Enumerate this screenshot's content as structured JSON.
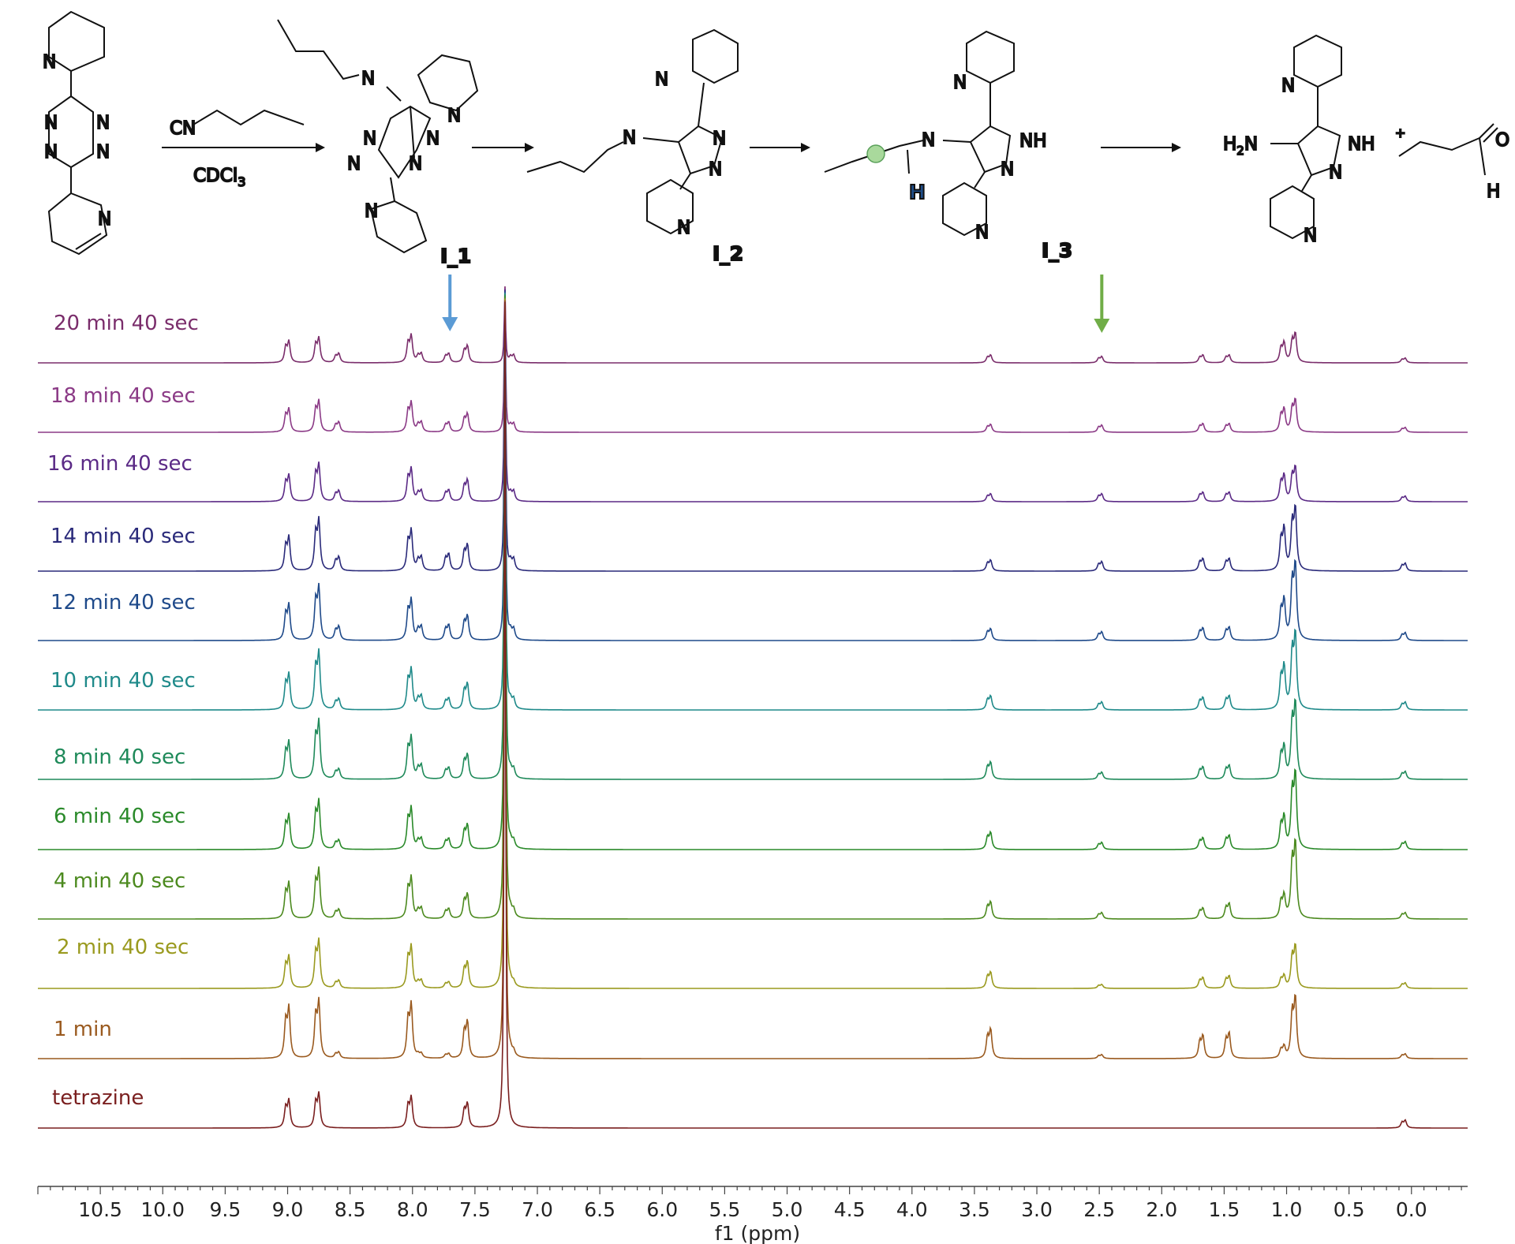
{
  "scheme": {
    "reagent": "CN",
    "solvent": "CDCl3",
    "solvent_main": "CDCl",
    "solvent_sub": "3",
    "atom_N": "N",
    "atom_NH": "NH",
    "atom_H": "H",
    "atom_O": "O",
    "amine_H": "H",
    "amine_sub": "2",
    "amine_N": "N",
    "plus": "+",
    "intermediates": [
      "I_1",
      "I_2",
      "I_3"
    ]
  },
  "chart_data": {
    "type": "line",
    "title": "",
    "xlabel": "f1 (ppm)",
    "ylabel": "",
    "xlim": [
      11.0,
      -0.45
    ],
    "x_reversed": true,
    "grid": false,
    "legend": "none",
    "x_ticks": [
      "10.5",
      "10.0",
      "9.5",
      "9.0",
      "8.5",
      "8.0",
      "7.5",
      "7.0",
      "6.5",
      "6.0",
      "5.5",
      "5.0",
      "4.5",
      "4.0",
      "3.5",
      "3.0",
      "2.5",
      "2.0",
      "1.5",
      "1.0",
      "0.5",
      "0.0"
    ],
    "x_tick_values": [
      10.5,
      10.0,
      9.5,
      9.0,
      8.5,
      8.0,
      7.5,
      7.0,
      6.5,
      6.0,
      5.5,
      5.0,
      4.5,
      4.0,
      3.5,
      3.0,
      2.5,
      2.0,
      1.5,
      1.0,
      0.5,
      0.0
    ],
    "arrows": [
      {
        "intermediate": "I_1",
        "ppm": 7.7,
        "color": "#5b9bd5"
      },
      {
        "intermediate": "I_3",
        "ppm": 2.48,
        "color": "#70ad47"
      }
    ],
    "solvent_peak_ppm": 7.26,
    "series": [
      {
        "name": "20 min 40 sec",
        "color": "#7a2d6b",
        "peaks": [
          [
            8.99,
            0.28
          ],
          [
            8.75,
            0.32
          ],
          [
            8.59,
            0.12
          ],
          [
            8.01,
            0.35
          ],
          [
            7.93,
            0.12
          ],
          [
            7.71,
            0.12
          ],
          [
            7.56,
            0.22
          ],
          [
            7.19,
            0.1
          ],
          [
            3.37,
            0.1
          ],
          [
            2.48,
            0.08
          ],
          [
            1.67,
            0.1
          ],
          [
            1.46,
            0.1
          ],
          [
            1.02,
            0.26
          ],
          [
            0.93,
            0.38
          ],
          [
            0.05,
            0.06
          ]
        ]
      },
      {
        "name": "18 min 40 sec",
        "color": "#8b3a86",
        "peaks": [
          [
            8.99,
            0.3
          ],
          [
            8.75,
            0.4
          ],
          [
            8.59,
            0.13
          ],
          [
            8.01,
            0.38
          ],
          [
            7.93,
            0.13
          ],
          [
            7.71,
            0.13
          ],
          [
            7.56,
            0.24
          ],
          [
            7.19,
            0.11
          ],
          [
            3.37,
            0.1
          ],
          [
            2.48,
            0.09
          ],
          [
            1.67,
            0.11
          ],
          [
            1.46,
            0.11
          ],
          [
            1.02,
            0.3
          ],
          [
            0.93,
            0.42
          ],
          [
            0.05,
            0.06
          ]
        ]
      },
      {
        "name": "16 min 40 sec",
        "color": "#5b2a86",
        "peaks": [
          [
            8.99,
            0.34
          ],
          [
            8.75,
            0.48
          ],
          [
            8.59,
            0.14
          ],
          [
            8.01,
            0.42
          ],
          [
            7.93,
            0.14
          ],
          [
            7.71,
            0.15
          ],
          [
            7.56,
            0.28
          ],
          [
            7.19,
            0.13
          ],
          [
            3.37,
            0.1
          ],
          [
            2.48,
            0.1
          ],
          [
            1.67,
            0.12
          ],
          [
            1.46,
            0.12
          ],
          [
            1.02,
            0.34
          ],
          [
            0.93,
            0.45
          ],
          [
            0.05,
            0.07
          ]
        ]
      },
      {
        "name": "14 min 40 sec",
        "color": "#2a2a7a",
        "peaks": [
          [
            8.99,
            0.44
          ],
          [
            8.75,
            0.66
          ],
          [
            8.59,
            0.18
          ],
          [
            8.01,
            0.52
          ],
          [
            7.93,
            0.18
          ],
          [
            7.71,
            0.22
          ],
          [
            7.56,
            0.34
          ],
          [
            7.19,
            0.15
          ],
          [
            3.37,
            0.14
          ],
          [
            2.48,
            0.12
          ],
          [
            1.67,
            0.16
          ],
          [
            1.46,
            0.16
          ],
          [
            1.02,
            0.55
          ],
          [
            0.93,
            0.82
          ],
          [
            0.05,
            0.1
          ]
        ]
      },
      {
        "name": "12 min 40 sec",
        "color": "#1f4a8a",
        "peaks": [
          [
            8.99,
            0.46
          ],
          [
            8.75,
            0.69
          ],
          [
            8.59,
            0.18
          ],
          [
            8.01,
            0.52
          ],
          [
            7.93,
            0.18
          ],
          [
            7.71,
            0.2
          ],
          [
            7.56,
            0.32
          ],
          [
            7.19,
            0.14
          ],
          [
            3.37,
            0.15
          ],
          [
            2.48,
            0.11
          ],
          [
            1.67,
            0.16
          ],
          [
            1.46,
            0.17
          ],
          [
            1.02,
            0.52
          ],
          [
            0.93,
            1.0
          ],
          [
            0.05,
            0.1
          ]
        ]
      },
      {
        "name": "10 min 40 sec",
        "color": "#1f8a8a",
        "peaks": [
          [
            8.99,
            0.46
          ],
          [
            8.75,
            0.74
          ],
          [
            8.59,
            0.14
          ],
          [
            8.01,
            0.52
          ],
          [
            7.93,
            0.18
          ],
          [
            7.71,
            0.15
          ],
          [
            7.56,
            0.34
          ],
          [
            7.19,
            0.13
          ],
          [
            3.37,
            0.18
          ],
          [
            2.48,
            0.1
          ],
          [
            1.67,
            0.16
          ],
          [
            1.46,
            0.18
          ],
          [
            1.02,
            0.56
          ],
          [
            0.93,
            1.0
          ],
          [
            0.05,
            0.1
          ]
        ]
      },
      {
        "name": "8 min 40 sec",
        "color": "#1f8a5a",
        "peaks": [
          [
            8.99,
            0.48
          ],
          [
            8.75,
            0.74
          ],
          [
            8.59,
            0.13
          ],
          [
            8.01,
            0.54
          ],
          [
            7.93,
            0.18
          ],
          [
            7.71,
            0.15
          ],
          [
            7.56,
            0.32
          ],
          [
            7.19,
            0.12
          ],
          [
            3.37,
            0.22
          ],
          [
            2.48,
            0.09
          ],
          [
            1.67,
            0.16
          ],
          [
            1.46,
            0.18
          ],
          [
            1.02,
            0.42
          ],
          [
            0.93,
            1.0
          ],
          [
            0.05,
            0.1
          ]
        ]
      },
      {
        "name": "6 min 40 sec",
        "color": "#2a8a2a",
        "peaks": [
          [
            8.99,
            0.44
          ],
          [
            8.75,
            0.62
          ],
          [
            8.59,
            0.12
          ],
          [
            8.01,
            0.53
          ],
          [
            7.93,
            0.14
          ],
          [
            7.71,
            0.14
          ],
          [
            7.56,
            0.32
          ],
          [
            7.19,
            0.1
          ],
          [
            3.37,
            0.22
          ],
          [
            2.48,
            0.09
          ],
          [
            1.67,
            0.15
          ],
          [
            1.46,
            0.18
          ],
          [
            1.02,
            0.42
          ],
          [
            0.93,
            1.0
          ],
          [
            0.05,
            0.1
          ]
        ]
      },
      {
        "name": "4 min 40 sec",
        "color": "#4c8a1f",
        "peaks": [
          [
            8.99,
            0.46
          ],
          [
            8.75,
            0.63
          ],
          [
            8.59,
            0.12
          ],
          [
            8.01,
            0.53
          ],
          [
            7.93,
            0.14
          ],
          [
            7.71,
            0.13
          ],
          [
            7.56,
            0.32
          ],
          [
            7.19,
            0.1
          ],
          [
            3.37,
            0.22
          ],
          [
            2.48,
            0.08
          ],
          [
            1.67,
            0.14
          ],
          [
            1.46,
            0.2
          ],
          [
            1.02,
            0.3
          ],
          [
            0.93,
            1.0
          ],
          [
            0.05,
            0.08
          ]
        ]
      },
      {
        "name": "2 min 40 sec",
        "color": "#9a9a1f",
        "peaks": [
          [
            8.99,
            0.41
          ],
          [
            8.75,
            0.61
          ],
          [
            8.59,
            0.1
          ],
          [
            8.01,
            0.54
          ],
          [
            7.93,
            0.1
          ],
          [
            7.71,
            0.08
          ],
          [
            7.56,
            0.34
          ],
          [
            7.19,
            0.06
          ],
          [
            3.37,
            0.21
          ],
          [
            2.48,
            0.05
          ],
          [
            1.67,
            0.14
          ],
          [
            1.46,
            0.16
          ],
          [
            1.02,
            0.16
          ],
          [
            0.93,
            0.56
          ],
          [
            0.05,
            0.07
          ]
        ]
      },
      {
        "name": "1 min",
        "color": "#9a5a1f",
        "peaks": [
          [
            8.99,
            0.66
          ],
          [
            8.75,
            0.74
          ],
          [
            8.59,
            0.08
          ],
          [
            8.01,
            0.7
          ],
          [
            7.93,
            0.06
          ],
          [
            7.71,
            0.06
          ],
          [
            7.56,
            0.48
          ],
          [
            7.19,
            0.07
          ],
          [
            3.37,
            0.38
          ],
          [
            2.48,
            0.05
          ],
          [
            1.67,
            0.3
          ],
          [
            1.46,
            0.33
          ],
          [
            1.02,
            0.15
          ],
          [
            0.93,
            0.8
          ],
          [
            0.05,
            0.06
          ]
        ]
      },
      {
        "name": "tetrazine",
        "color": "#7a1f1f",
        "peaks": [
          [
            8.99,
            0.36
          ],
          [
            8.75,
            0.44
          ],
          [
            8.01,
            0.4
          ],
          [
            7.56,
            0.32
          ],
          [
            0.05,
            0.1
          ]
        ]
      }
    ]
  }
}
